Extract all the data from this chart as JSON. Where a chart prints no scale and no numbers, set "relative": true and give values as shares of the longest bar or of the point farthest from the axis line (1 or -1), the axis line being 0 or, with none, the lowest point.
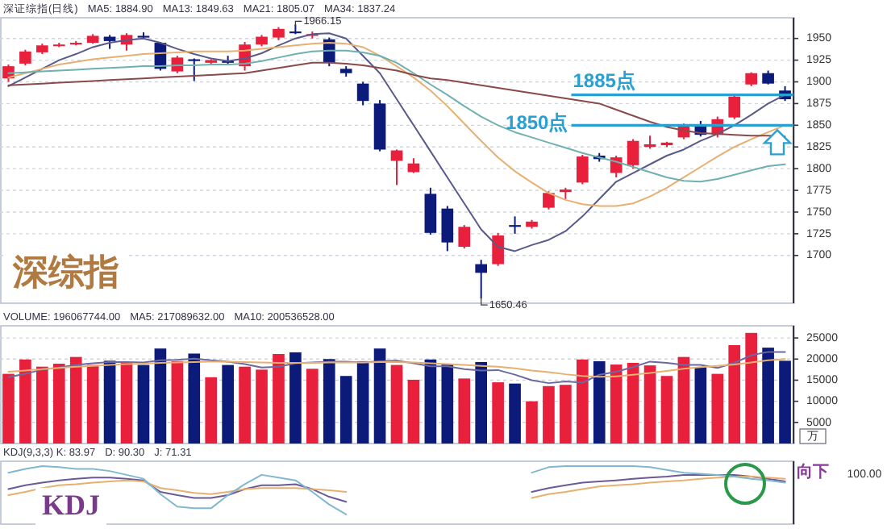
{
  "chart_data": [
    {
      "type": "candlestick",
      "categories": [
        null,
        null,
        null,
        null,
        null,
        null,
        null,
        null,
        null,
        null,
        null,
        null,
        null,
        null,
        null,
        null,
        null,
        null,
        null,
        null,
        null,
        null,
        null,
        null,
        null,
        null,
        null,
        null,
        null,
        null,
        null,
        null,
        null,
        null,
        null,
        null,
        null,
        null,
        null,
        null,
        null,
        null,
        null,
        null,
        null,
        null,
        null
      ],
      "ohlc": [
        [
          1904,
          1920,
          1900,
          1918
        ],
        [
          1921,
          1937,
          1919,
          1935
        ],
        [
          1934,
          1944,
          1932,
          1942
        ],
        [
          1942,
          1945,
          1940,
          1943
        ],
        [
          1943,
          1947,
          1942,
          1945
        ],
        [
          1945,
          1955,
          1944,
          1953
        ],
        [
          1952,
          1954,
          1938,
          1947
        ],
        [
          1943,
          1956,
          1936,
          1954
        ],
        [
          1953,
          1957,
          1950,
          1951
        ],
        [
          1945,
          1946,
          1913,
          1915
        ],
        [
          1912,
          1930,
          1910,
          1928
        ],
        [
          1926,
          1927,
          1901,
          1924
        ],
        [
          1922,
          1926,
          1920,
          1925
        ],
        [
          1924,
          1930,
          1920,
          1922
        ],
        [
          1918,
          1946,
          1913,
          1943
        ],
        [
          1943,
          1954,
          1941,
          1952
        ],
        [
          1951,
          1963,
          1948,
          1961
        ],
        [
          1958,
          1966.15,
          1955,
          1956
        ],
        [
          1953,
          1958,
          1950,
          1955
        ],
        [
          1949,
          1951,
          1918,
          1922
        ],
        [
          1915,
          1918,
          1906,
          1910
        ],
        [
          1898,
          1900,
          1873,
          1878
        ],
        [
          1875,
          1879,
          1820,
          1822
        ],
        [
          1809,
          1822,
          1781,
          1821
        ],
        [
          1796,
          1812,
          1795,
          1806
        ],
        [
          1771,
          1778,
          1724,
          1726
        ],
        [
          1754,
          1757,
          1705,
          1715
        ],
        [
          1710,
          1735,
          1708,
          1733
        ],
        [
          1690,
          1695,
          1650.46,
          1680
        ],
        [
          1690,
          1726,
          1688,
          1723
        ],
        [
          1735,
          1745,
          1725,
          1733
        ],
        [
          1733,
          1741,
          1731,
          1739
        ],
        [
          1755,
          1774,
          1753,
          1772
        ],
        [
          1773,
          1778,
          1765,
          1776
        ],
        [
          1784,
          1816,
          1782,
          1814
        ],
        [
          1815,
          1818,
          1808,
          1811
        ],
        [
          1795,
          1815,
          1790,
          1813
        ],
        [
          1804,
          1834,
          1800,
          1832
        ],
        [
          1825,
          1838,
          1823,
          1828
        ],
        [
          1827,
          1831,
          1825,
          1830
        ],
        [
          1836,
          1852,
          1834,
          1850
        ],
        [
          1850,
          1855,
          1837,
          1839
        ],
        [
          1839,
          1860,
          1836,
          1857
        ],
        [
          1859,
          1885,
          1857,
          1883
        ],
        [
          1897,
          1911,
          1895,
          1910
        ],
        [
          1910,
          1913,
          1897,
          1898
        ],
        [
          1890,
          1895,
          1878,
          1880
        ]
      ],
      "colors": [
        "#e8203c",
        "#e8203c",
        "#e8203c",
        "#e8203c",
        "#e8203c",
        "#e8203c",
        "#0c1a7a",
        "#e8203c",
        "#0c1a7a",
        "#0c1a7a",
        "#e8203c",
        "#0c1a7a",
        "#e8203c",
        "#0c1a7a",
        "#e8203c",
        "#e8203c",
        "#e8203c",
        "#0c1a7a",
        "#e8203c",
        "#0c1a7a",
        "#0c1a7a",
        "#0c1a7a",
        "#0c1a7a",
        "#e8203c",
        "#e8203c",
        "#0c1a7a",
        "#0c1a7a",
        "#e8203c",
        "#0c1a7a",
        "#e8203c",
        "#0c1a7a",
        "#e8203c",
        "#e8203c",
        "#e8203c",
        "#e8203c",
        "#0c1a7a",
        "#e8203c",
        "#e8203c",
        "#e8203c",
        "#e8203c",
        "#e8203c",
        "#0c1a7a",
        "#e8203c",
        "#e8203c",
        "#e8203c",
        "#0c1a7a",
        "#0c1a7a"
      ],
      "series": [
        {
          "type": "line",
          "color": "#5a5a8a",
          "values": [
            1895,
            1905,
            1915,
            1925,
            1932,
            1940,
            1945,
            1948,
            1950,
            1945,
            1938,
            1932,
            1927,
            1924,
            1927,
            1933,
            1942,
            1950,
            1955,
            1956,
            1950,
            1930,
            1910,
            1880,
            1850,
            1820,
            1790,
            1760,
            1730,
            1710,
            1705,
            1712,
            1718,
            1728,
            1745,
            1765,
            1785,
            1795,
            1805,
            1815,
            1822,
            1832,
            1840,
            1850,
            1862,
            1875,
            1885
          ]
        },
        {
          "type": "line",
          "color": "#e8b070",
          "values": [
            1905,
            1910,
            1915,
            1920,
            1923,
            1926,
            1928,
            1930,
            1932,
            1933,
            1934,
            1935,
            1935,
            1935,
            1936,
            1938,
            1940,
            1942,
            1944,
            1945,
            1944,
            1940,
            1930,
            1918,
            1905,
            1890,
            1872,
            1852,
            1832,
            1813,
            1797,
            1784,
            1772,
            1764,
            1759,
            1757,
            1757,
            1760,
            1768,
            1778,
            1790,
            1802,
            1814,
            1825,
            1834,
            1842,
            1850
          ]
        },
        {
          "type": "line",
          "color": "#6fb0b0",
          "values": [
            1910,
            1911,
            1912,
            1913,
            1914,
            1915,
            1916,
            1917,
            1918,
            1918,
            1919,
            1919,
            1920,
            1920,
            1921,
            1924,
            1928,
            1932,
            1935,
            1936,
            1936,
            1934,
            1930,
            1922,
            1910,
            1897,
            1885,
            1872,
            1860,
            1850,
            1842,
            1836,
            1830,
            1824,
            1818,
            1813,
            1808,
            1802,
            1796,
            1790,
            1786,
            1785,
            1788,
            1793,
            1798,
            1803,
            1805
          ]
        },
        {
          "type": "line",
          "color": "#8a4a4a",
          "values": [
            1896,
            1897,
            1898,
            1899,
            1900,
            1901,
            1902,
            1903,
            1904,
            1905,
            1906,
            1907,
            1908,
            1909,
            1910,
            1913,
            1916,
            1919,
            1922,
            1922,
            1921,
            1919,
            1916,
            1913,
            1908,
            1904,
            1902,
            1899,
            1896,
            1893,
            1890,
            1887,
            1884,
            1881,
            1878,
            1875,
            1868,
            1861,
            1854,
            1848,
            1844,
            1841,
            1840,
            1839,
            1838,
            1838,
            1837
          ]
        }
      ],
      "ylim": [
        1645,
        1972
      ],
      "yticks": [
        1700,
        1725,
        1750,
        1775,
        1800,
        1825,
        1850,
        1875,
        1900,
        1925,
        1950
      ],
      "grid": "y",
      "tick_labels": "y",
      "ref_lines": [
        {
          "axis": "y",
          "value": 1885,
          "label": "1885点",
          "color": "#2aa0d0"
        },
        {
          "axis": "y",
          "value": 1850,
          "label": "1850点",
          "color": "#2aa0d0"
        }
      ],
      "annotations": [
        "深证综指(日线)",
        "MA5: 1884.90",
        "MA13: 1849.63",
        "MA21: 1805.07",
        "MA34: 1837.24",
        "1966.15",
        "1650.46",
        "深综指"
      ]
    },
    {
      "type": "bar",
      "categories": [
        null,
        null,
        null,
        null,
        null,
        null,
        null,
        null,
        null,
        null,
        null,
        null,
        null,
        null,
        null,
        null,
        null,
        null,
        null,
        null,
        null,
        null,
        null,
        null,
        null,
        null,
        null,
        null,
        null,
        null,
        null,
        null,
        null,
        null,
        null,
        null,
        null,
        null,
        null,
        null,
        null,
        null,
        null,
        null,
        null,
        null,
        null
      ],
      "series": [
        {
          "colors": [
            "#e8203c",
            "#e8203c",
            "#e8203c",
            "#e8203c",
            "#e8203c",
            "#e8203c",
            "#0c1a7a",
            "#e8203c",
            "#0c1a7a",
            "#0c1a7a",
            "#e8203c",
            "#0c1a7a",
            "#e8203c",
            "#0c1a7a",
            "#e8203c",
            "#e8203c",
            "#e8203c",
            "#0c1a7a",
            "#e8203c",
            "#0c1a7a",
            "#0c1a7a",
            "#0c1a7a",
            "#0c1a7a",
            "#e8203c",
            "#e8203c",
            "#0c1a7a",
            "#0c1a7a",
            "#e8203c",
            "#0c1a7a",
            "#e8203c",
            "#0c1a7a",
            "#e8203c",
            "#e8203c",
            "#e8203c",
            "#e8203c",
            "#0c1a7a",
            "#e8203c",
            "#e8203c",
            "#e8203c",
            "#e8203c",
            "#e8203c",
            "#0c1a7a",
            "#e8203c",
            "#e8203c",
            "#e8203c",
            "#0c1a7a",
            "#0c1a7a"
          ],
          "values": [
            16500,
            19900,
            18200,
            18900,
            20500,
            18600,
            19600,
            19200,
            18600,
            22500,
            19500,
            21300,
            15700,
            18600,
            18200,
            17500,
            21200,
            21600,
            17700,
            20000,
            16000,
            19500,
            22500,
            18600,
            15100,
            19900,
            18700,
            15400,
            19300,
            14500,
            14200,
            10000,
            13600,
            13900,
            19900,
            19500,
            18700,
            19100,
            18500,
            16000,
            20500,
            18100,
            16500,
            23300,
            26200,
            22700,
            19600
          ]
        },
        {
          "type": "line",
          "color": "#6a6aa0",
          "values": [
            15700,
            16500,
            17500,
            18000,
            18600,
            19000,
            19300,
            19300,
            19200,
            19700,
            19800,
            20100,
            19700,
            19400,
            18800,
            18000,
            18200,
            19000,
            19200,
            19400,
            19400,
            19200,
            19500,
            19600,
            19000,
            18300,
            18300,
            17600,
            17300,
            17400,
            16300,
            15000,
            14300,
            14700,
            14400,
            16300,
            17000,
            18100,
            19400,
            19100,
            18600,
            18600,
            17900,
            19100,
            20900,
            21700,
            21700
          ]
        },
        {
          "type": "line",
          "color": "#e8b070",
          "values": [
            17000,
            17300,
            17600,
            17900,
            18200,
            18400,
            18600,
            18800,
            18900,
            19100,
            19200,
            19300,
            19400,
            19400,
            19300,
            19200,
            19100,
            19100,
            19100,
            19200,
            19200,
            19200,
            19300,
            19300,
            19200,
            19000,
            18800,
            18600,
            18400,
            18200,
            17800,
            17300,
            16900,
            16400,
            16000,
            15800,
            15900,
            16300,
            16700,
            17200,
            17700,
            18100,
            18400,
            18700,
            19200,
            19700,
            20000
          ]
        }
      ],
      "ylim": [
        0,
        27500
      ],
      "yticks": [
        5000,
        10000,
        15000,
        20000,
        25000
      ],
      "grid": "y",
      "tick_labels": "y",
      "ylabel": "万",
      "annotations": [
        "VOLUME: 196067744.00",
        "MA5: 217089632.00",
        "MA10: 200536528.00"
      ]
    },
    {
      "type": "line",
      "relative": true,
      "categories": [
        null,
        null,
        null,
        null,
        null,
        null,
        null,
        null,
        null,
        null,
        null,
        null,
        null,
        null,
        null,
        null,
        null,
        null,
        null,
        null,
        null,
        null,
        null,
        null,
        null,
        null,
        null,
        null,
        null,
        null,
        null,
        null,
        null,
        null,
        null,
        null,
        null,
        null,
        null,
        null,
        null,
        null,
        null,
        null,
        null,
        null,
        null
      ],
      "series": [
        {
          "color": "#6a5a9a",
          "values": [
            0.58,
            0.65,
            0.7,
            0.74,
            0.77,
            0.79,
            0.79,
            0.77,
            0.74,
            0.53,
            0.47,
            0.42,
            0.42,
            0.47,
            0.58,
            0.65,
            0.65,
            0.67,
            0.58,
            0.44,
            0.35,
            null,
            null,
            null,
            null,
            null,
            null,
            null,
            null,
            null,
            null,
            0.53,
            0.6,
            0.65,
            0.7,
            0.72,
            0.74,
            0.77,
            0.79,
            0.81,
            0.84,
            0.84,
            0.84,
            0.84,
            0.81,
            0.77,
            0.72
          ]
        },
        {
          "color": "#e8b070",
          "values": [
            0.47,
            0.53,
            0.6,
            0.65,
            0.67,
            0.7,
            0.72,
            0.74,
            0.72,
            0.6,
            0.56,
            0.51,
            0.49,
            0.53,
            0.58,
            0.6,
            0.6,
            0.6,
            0.58,
            0.56,
            0.53,
            null,
            null,
            null,
            null,
            null,
            null,
            null,
            null,
            null,
            null,
            0.42,
            0.49,
            0.53,
            0.58,
            0.63,
            0.65,
            0.67,
            0.7,
            0.72,
            0.74,
            0.77,
            0.79,
            0.81,
            0.81,
            0.79,
            0.77
          ]
        },
        {
          "color": "#80b8d0",
          "values": [
            0.88,
            0.95,
            1.0,
            0.98,
            0.95,
            0.95,
            0.91,
            0.84,
            0.77,
            0.49,
            0.26,
            0.23,
            0.23,
            0.47,
            0.67,
            0.84,
            0.79,
            0.74,
            0.53,
            0.3,
            0.12,
            null,
            null,
            null,
            null,
            null,
            null,
            null,
            null,
            null,
            null,
            0.88,
            0.98,
            1.0,
            1.0,
            1.0,
            1.0,
            1.0,
            0.98,
            0.93,
            0.88,
            0.86,
            0.84,
            0.81,
            0.77,
            0.74,
            0.7
          ]
        }
      ],
      "tick_labels": false,
      "annotations": [
        "KDJ(9,3,3) K: 83.97",
        "D: 90.30",
        "J: 71.31",
        "100.00",
        "KDJ",
        "向下"
      ]
    }
  ]
}
